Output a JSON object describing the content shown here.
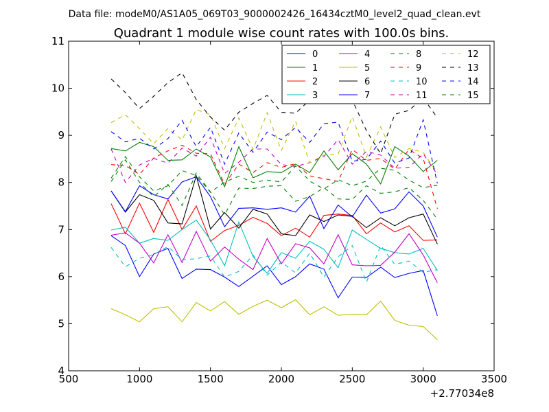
{
  "chart_data": {
    "type": "line",
    "suptitle": "Data file: modeM0/AS1A05_069T03_9000002426_16434cztM0_level2_quad_clean.evt",
    "title": "Quadrant 1 module wise count rates with 100.0s bins.",
    "xlabel": "",
    "ylabel": "",
    "x_offset_label": "+2.77034e8",
    "xlim": [
      500,
      3500
    ],
    "ylim": [
      4,
      11
    ],
    "xticks": [
      500,
      1000,
      1500,
      2000,
      2500,
      3000,
      3500
    ],
    "yticks": [
      4,
      5,
      6,
      7,
      8,
      9,
      10,
      11
    ],
    "legend_position": "top-right",
    "grid": false,
    "x": [
      800,
      900,
      1000,
      1100,
      1200,
      1300,
      1400,
      1500,
      1600,
      1700,
      1800,
      1900,
      2000,
      2100,
      2200,
      2300,
      2400,
      2500,
      2600,
      2700,
      2800,
      2900,
      3000,
      3100
    ],
    "series": [
      {
        "name": "0",
        "color": "#0000ff",
        "dash": "solid",
        "values": [
          6.87,
          6.66,
          6.0,
          6.48,
          6.6,
          5.96,
          6.16,
          6.15,
          5.99,
          5.79,
          6.01,
          6.23,
          5.83,
          6.0,
          6.27,
          6.16,
          5.55,
          5.99,
          5.98,
          6.2,
          5.98,
          6.07,
          6.13,
          5.17
        ]
      },
      {
        "name": "1",
        "color": "#008000",
        "dash": "solid",
        "values": [
          8.72,
          8.67,
          8.85,
          8.76,
          8.47,
          8.48,
          8.71,
          8.54,
          7.91,
          8.76,
          8.1,
          8.23,
          8.21,
          8.39,
          8.21,
          8.67,
          8.27,
          8.61,
          8.39,
          7.97,
          8.76,
          8.56,
          8.23,
          8.47
        ]
      },
      {
        "name": "2",
        "color": "#ff0000",
        "dash": "solid",
        "values": [
          7.55,
          6.91,
          7.56,
          6.94,
          7.64,
          7.0,
          7.5,
          6.75,
          6.98,
          7.09,
          7.26,
          7.13,
          6.87,
          7.03,
          6.84,
          7.3,
          7.33,
          7.3,
          6.91,
          7.14,
          6.95,
          7.08,
          6.77,
          6.78
        ]
      },
      {
        "name": "3",
        "color": "#00bfbf",
        "dash": "solid",
        "values": [
          6.99,
          7.05,
          6.71,
          6.81,
          6.77,
          7.0,
          7.2,
          6.78,
          6.23,
          7.16,
          6.43,
          6.07,
          6.51,
          6.39,
          6.75,
          6.58,
          6.19,
          6.99,
          6.79,
          6.6,
          6.51,
          6.48,
          6.6,
          6.13
        ]
      },
      {
        "name": "4",
        "color": "#bf00bf",
        "dash": "solid",
        "values": [
          6.88,
          6.93,
          6.71,
          6.29,
          6.89,
          6.3,
          6.96,
          6.33,
          6.63,
          6.37,
          6.15,
          6.81,
          6.27,
          6.7,
          6.61,
          6.27,
          6.89,
          6.25,
          6.23,
          6.24,
          6.52,
          6.91,
          6.46,
          5.87
        ]
      },
      {
        "name": "5",
        "color": "#bfbf00",
        "dash": "solid",
        "values": [
          5.32,
          5.19,
          5.04,
          5.32,
          5.36,
          5.04,
          5.45,
          5.27,
          5.47,
          5.2,
          5.37,
          5.5,
          5.34,
          5.51,
          5.19,
          5.36,
          5.18,
          5.2,
          5.19,
          5.48,
          5.07,
          4.97,
          4.94,
          4.66
        ]
      },
      {
        "name": "6",
        "color": "#000000",
        "dash": "solid",
        "values": [
          7.82,
          7.37,
          7.74,
          7.62,
          7.14,
          7.12,
          8.14,
          7.01,
          7.36,
          7.03,
          7.43,
          7.33,
          6.91,
          6.87,
          7.31,
          7.17,
          7.31,
          7.28,
          7.04,
          7.25,
          7.08,
          7.25,
          7.33,
          6.69
        ]
      },
      {
        "name": "7",
        "color": "#0000ff",
        "dash": "solid",
        "values": [
          7.82,
          7.38,
          7.93,
          7.74,
          7.65,
          8.01,
          8.12,
          7.7,
          7.06,
          7.45,
          7.46,
          7.43,
          7.46,
          7.37,
          7.71,
          7.02,
          7.52,
          7.27,
          7.73,
          7.35,
          7.44,
          7.8,
          7.5,
          6.84
        ]
      },
      {
        "name": "8",
        "color": "#008000",
        "dash": "dashed",
        "values": [
          8.02,
          8.48,
          8.0,
          7.7,
          7.96,
          7.51,
          8.2,
          7.8,
          7.31,
          7.88,
          7.87,
          7.92,
          7.93,
          7.6,
          7.7,
          7.89,
          7.65,
          7.64,
          7.93,
          7.77,
          7.8,
          7.89,
          7.62,
          7.22
        ]
      },
      {
        "name": "9",
        "color": "#ff0000",
        "dash": "dashed",
        "values": [
          8.38,
          8.36,
          8.17,
          8.52,
          8.67,
          8.79,
          8.62,
          8.61,
          7.96,
          8.39,
          8.21,
          8.42,
          8.32,
          8.4,
          8.14,
          8.08,
          8.02,
          8.7,
          8.47,
          8.51,
          8.28,
          8.7,
          8.51,
          7.44
        ]
      },
      {
        "name": "10",
        "color": "#00bfbf",
        "dash": "dashed",
        "values": [
          6.62,
          6.21,
          6.39,
          6.47,
          6.64,
          6.36,
          6.38,
          6.44,
          5.99,
          6.11,
          6.46,
          6.03,
          6.31,
          6.08,
          6.5,
          5.99,
          6.42,
          6.66,
          5.88,
          6.66,
          6.26,
          6.33,
          6.09,
          6.15
        ]
      },
      {
        "name": "11",
        "color": "#bf00bf",
        "dash": "dashed",
        "values": [
          8.71,
          8.0,
          8.37,
          8.51,
          8.41,
          8.73,
          8.56,
          8.96,
          8.19,
          8.43,
          8.71,
          8.71,
          8.38,
          8.34,
          8.42,
          8.55,
          8.91,
          8.39,
          8.66,
          8.58,
          8.3,
          8.32,
          8.61,
          8.17
        ]
      },
      {
        "name": "12",
        "color": "#bfbf00",
        "dash": "dashed",
        "values": [
          9.27,
          9.44,
          9.14,
          8.82,
          9.15,
          8.9,
          9.55,
          9.44,
          8.72,
          9.37,
          8.7,
          9.48,
          8.68,
          9.3,
          8.42,
          8.58,
          8.6,
          9.4,
          8.54,
          9.18,
          8.53,
          8.72,
          8.64,
          8.2
        ]
      },
      {
        "name": "13",
        "color": "#000000",
        "dash": "dashed",
        "values": [
          10.2,
          9.91,
          9.57,
          9.83,
          10.12,
          10.33,
          9.76,
          9.39,
          9.11,
          9.49,
          9.68,
          9.85,
          9.49,
          9.47,
          9.75,
          9.85,
          9.8,
          9.75,
          9.1,
          8.61,
          9.45,
          9.53,
          9.8,
          9.37
        ]
      },
      {
        "name": "14",
        "color": "#0000ff",
        "dash": "dashed",
        "values": [
          9.08,
          8.86,
          8.94,
          8.71,
          8.93,
          9.32,
          8.76,
          9.17,
          8.39,
          9.05,
          8.64,
          9.07,
          8.91,
          9.17,
          8.85,
          9.25,
          9.28,
          8.45,
          8.49,
          8.88,
          8.41,
          8.52,
          9.33,
          7.98
        ]
      },
      {
        "name": "15",
        "color": "#008000",
        "dash": "dashed",
        "values": [
          8.09,
          8.55,
          8.12,
          7.82,
          7.93,
          8.25,
          8.15,
          7.79,
          8.01,
          8.13,
          8.0,
          8.05,
          8.01,
          8.35,
          8.03,
          7.86,
          8.06,
          7.93,
          8.03,
          8.3,
          8.26,
          8.05,
          7.89,
          7.94
        ]
      }
    ]
  }
}
